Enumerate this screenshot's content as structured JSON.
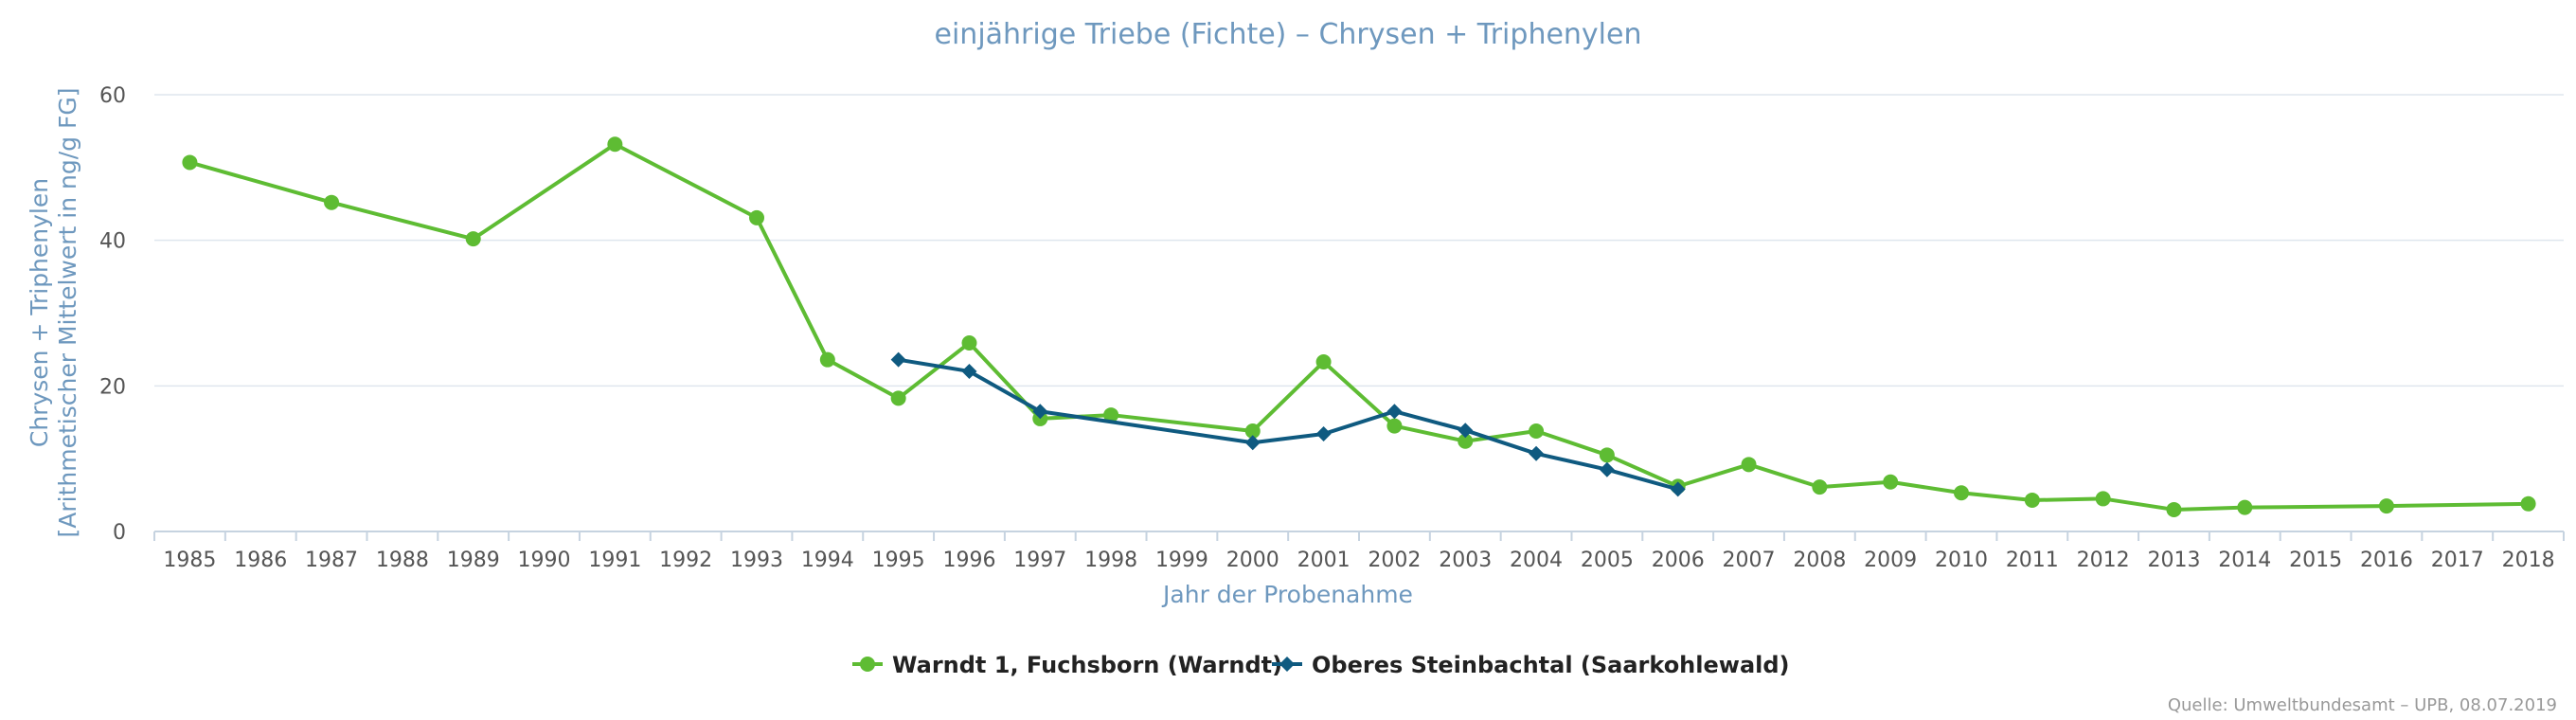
{
  "chart_data": {
    "type": "line",
    "title": "einjährige Triebe (Fichte) – Chrysen + Triphenylen",
    "xlabel": "Jahr der Probenahme",
    "ylabel_lines": [
      "Chrysen + Triphenylen",
      "[Arithmetischer Mittelwert in ng/g FG]"
    ],
    "ylim": [
      0,
      60
    ],
    "y_ticks": [
      0,
      20,
      40,
      60
    ],
    "grid": true,
    "legend_position": "bottom-center",
    "categories": [
      "1985",
      "1986",
      "1987",
      "1988",
      "1989",
      "1990",
      "1991",
      "1992",
      "1993",
      "1994",
      "1995",
      "1996",
      "1997",
      "1998",
      "1999",
      "2000",
      "2001",
      "2002",
      "2003",
      "2004",
      "2005",
      "2006",
      "2007",
      "2008",
      "2009",
      "2010",
      "2011",
      "2012",
      "2013",
      "2014",
      "2015",
      "2016",
      "2017",
      "2018"
    ],
    "series": [
      {
        "name": "Warndt 1, Fuchsborn (Warndt)",
        "color": "#5ebc33",
        "marker": "circle",
        "points": [
          [
            "1985",
            50.7
          ],
          [
            "1987",
            45.2
          ],
          [
            "1989",
            40.2
          ],
          [
            "1991",
            53.2
          ],
          [
            "1993",
            43.1
          ],
          [
            "1994",
            23.6
          ],
          [
            "1995",
            18.3
          ],
          [
            "1996",
            25.9
          ],
          [
            "1997",
            15.5
          ],
          [
            "1998",
            16.0
          ],
          [
            "2000",
            13.8
          ],
          [
            "2001",
            23.3
          ],
          [
            "2002",
            14.5
          ],
          [
            "2003",
            12.4
          ],
          [
            "2004",
            13.8
          ],
          [
            "2005",
            10.5
          ],
          [
            "2006",
            6.2
          ],
          [
            "2007",
            9.2
          ],
          [
            "2008",
            6.1
          ],
          [
            "2009",
            6.8
          ],
          [
            "2010",
            5.3
          ],
          [
            "2011",
            4.3
          ],
          [
            "2012",
            4.5
          ],
          [
            "2013",
            3.0
          ],
          [
            "2014",
            3.3
          ],
          [
            "2016",
            3.5
          ],
          [
            "2018",
            3.8
          ]
        ]
      },
      {
        "name": "Oberes Steinbachtal (Saarkohlewald)",
        "color": "#0f5a80",
        "marker": "diamond",
        "points": [
          [
            "1995",
            23.6
          ],
          [
            "1996",
            22.0
          ],
          [
            "1997",
            16.5
          ],
          [
            "2000",
            12.2
          ],
          [
            "2001",
            13.4
          ],
          [
            "2002",
            16.5
          ],
          [
            "2003",
            13.9
          ],
          [
            "2004",
            10.7
          ],
          [
            "2005",
            8.5
          ],
          [
            "2006",
            5.8
          ]
        ]
      }
    ],
    "credits": "Quelle: Umweltbundesamt – UPB, 08.07.2019"
  }
}
